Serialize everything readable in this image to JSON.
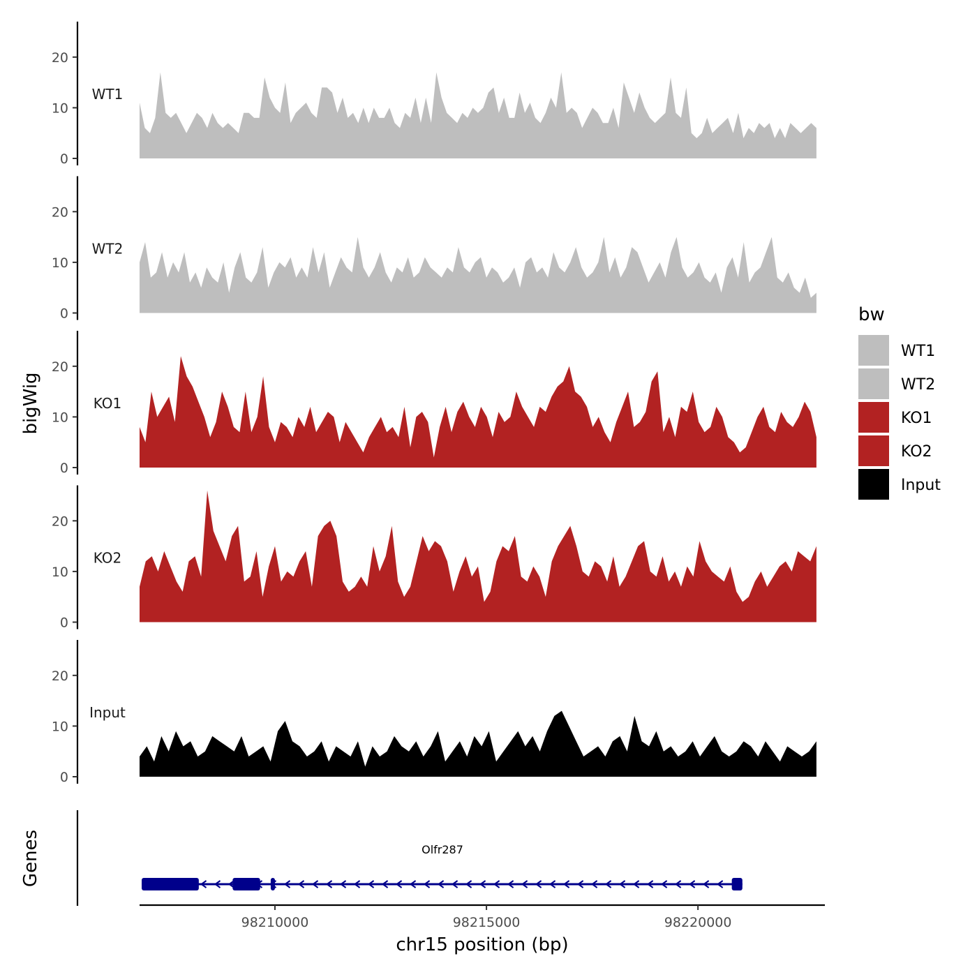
{
  "chart_data": {
    "type": "area",
    "ylabel": "bigWig",
    "xlabel": "chr15 position (bp)",
    "xlim": [
      98206800,
      98223000
    ],
    "x_ticks": [
      98210000,
      98215000,
      98220000
    ],
    "x_tick_labels": [
      "98210000",
      "98215000",
      "98220000"
    ],
    "ylim": [
      0,
      27
    ],
    "y_ticks": [
      0,
      10,
      20
    ],
    "y_tick_labels": [
      "0",
      "10",
      "20"
    ],
    "series": [
      {
        "name": "WT1",
        "color": "#bebebe",
        "start": 98206800,
        "end": 98222800,
        "values": [
          11,
          6,
          5,
          8,
          17,
          9,
          8,
          9,
          7,
          5,
          7,
          9,
          8,
          6,
          9,
          7,
          6,
          7,
          6,
          5,
          9,
          9,
          8,
          8,
          16,
          12,
          10,
          9,
          15,
          7,
          9,
          10,
          11,
          9,
          8,
          14,
          14,
          13,
          9,
          12,
          8,
          9,
          7,
          10,
          7,
          10,
          8,
          8,
          10,
          7,
          6,
          9,
          8,
          12,
          7,
          12,
          7,
          17,
          12,
          9,
          8,
          7,
          9,
          8,
          10,
          9,
          10,
          13,
          14,
          9,
          12,
          8,
          8,
          13,
          9,
          11,
          8,
          7,
          9,
          12,
          10,
          17,
          9,
          10,
          9,
          6,
          8,
          10,
          9,
          7,
          7,
          10,
          6,
          15,
          12,
          9,
          13,
          10,
          8,
          7,
          8,
          9,
          16,
          9,
          8,
          14,
          5,
          4,
          5,
          8,
          5,
          6,
          7,
          8,
          5,
          9,
          4,
          6,
          5,
          7,
          6,
          7,
          4,
          6,
          4,
          7,
          6,
          5,
          6,
          7,
          6
        ]
      },
      {
        "name": "WT2",
        "color": "#bebebe",
        "start": 98206800,
        "end": 98222800,
        "values": [
          10,
          14,
          7,
          8,
          12,
          7,
          10,
          8,
          12,
          6,
          8,
          5,
          9,
          7,
          6,
          10,
          4,
          9,
          12,
          7,
          6,
          8,
          13,
          5,
          8,
          10,
          9,
          11,
          7,
          9,
          7,
          13,
          8,
          12,
          5,
          8,
          11,
          9,
          8,
          15,
          9,
          7,
          9,
          12,
          8,
          6,
          9,
          8,
          11,
          7,
          8,
          11,
          9,
          8,
          7,
          9,
          8,
          13,
          9,
          8,
          10,
          11,
          7,
          9,
          8,
          6,
          7,
          9,
          5,
          10,
          11,
          8,
          9,
          7,
          12,
          9,
          8,
          10,
          13,
          9,
          7,
          8,
          10,
          15,
          8,
          11,
          7,
          9,
          13,
          12,
          9,
          6,
          8,
          10,
          7,
          12,
          15,
          9,
          7,
          8,
          10,
          7,
          6,
          8,
          4,
          9,
          11,
          7,
          14,
          6,
          8,
          9,
          12,
          15,
          7,
          6,
          8,
          5,
          4,
          7,
          3,
          4
        ]
      },
      {
        "name": "KO1",
        "color": "#b22222",
        "start": 98206800,
        "end": 98222800,
        "values": [
          8,
          5,
          15,
          10,
          12,
          14,
          9,
          22,
          18,
          16,
          13,
          10,
          6,
          9,
          15,
          12,
          8,
          7,
          15,
          7,
          10,
          18,
          8,
          5,
          9,
          8,
          6,
          10,
          8,
          12,
          7,
          9,
          11,
          10,
          5,
          9,
          7,
          5,
          3,
          6,
          8,
          10,
          7,
          8,
          6,
          12,
          4,
          10,
          11,
          9,
          2,
          8,
          12,
          7,
          11,
          13,
          10,
          8,
          12,
          10,
          6,
          11,
          9,
          10,
          15,
          12,
          10,
          8,
          12,
          11,
          14,
          16,
          17,
          20,
          15,
          14,
          12,
          8,
          10,
          7,
          5,
          9,
          12,
          15,
          8,
          9,
          11,
          17,
          19,
          7,
          10,
          6,
          12,
          11,
          15,
          9,
          7,
          8,
          12,
          10,
          6,
          5,
          3,
          4,
          7,
          10,
          12,
          8,
          7,
          11,
          9,
          8,
          10,
          13,
          11,
          6
        ]
      },
      {
        "name": "KO2",
        "color": "#b22222",
        "start": 98206800,
        "end": 98222800,
        "values": [
          7,
          12,
          13,
          10,
          14,
          11,
          8,
          6,
          12,
          13,
          9,
          26,
          18,
          15,
          12,
          17,
          19,
          8,
          9,
          14,
          5,
          11,
          15,
          8,
          10,
          9,
          12,
          14,
          7,
          17,
          19,
          20,
          17,
          8,
          6,
          7,
          9,
          7,
          15,
          10,
          13,
          19,
          8,
          5,
          7,
          12,
          17,
          14,
          16,
          15,
          12,
          6,
          10,
          13,
          9,
          11,
          4,
          6,
          12,
          15,
          14,
          17,
          9,
          8,
          11,
          9,
          5,
          12,
          15,
          17,
          19,
          15,
          10,
          9,
          12,
          11,
          8,
          13,
          7,
          9,
          12,
          15,
          16,
          10,
          9,
          13,
          8,
          10,
          7,
          11,
          9,
          16,
          12,
          10,
          9,
          8,
          11,
          6,
          4,
          5,
          8,
          10,
          7,
          9,
          11,
          12,
          10,
          14,
          13,
          12,
          15
        ]
      },
      {
        "name": "Input",
        "color": "#000000",
        "start": 98206800,
        "end": 98222800,
        "values": [
          4,
          6,
          3,
          8,
          5,
          9,
          6,
          7,
          4,
          5,
          8,
          7,
          6,
          5,
          8,
          4,
          5,
          6,
          3,
          9,
          11,
          7,
          6,
          4,
          5,
          7,
          3,
          6,
          5,
          4,
          7,
          2,
          6,
          4,
          5,
          8,
          6,
          5,
          7,
          4,
          6,
          9,
          3,
          5,
          7,
          4,
          8,
          6,
          9,
          3,
          5,
          7,
          9,
          6,
          8,
          5,
          9,
          12,
          13,
          10,
          7,
          4,
          5,
          6,
          4,
          7,
          8,
          5,
          12,
          7,
          6,
          9,
          5,
          6,
          4,
          5,
          7,
          4,
          6,
          8,
          5,
          4,
          5,
          7,
          6,
          4,
          7,
          5,
          3,
          6,
          5,
          4,
          5,
          7
        ]
      }
    ],
    "legend": {
      "title": "bw",
      "placement": "right",
      "entries": [
        {
          "label": "WT1",
          "color": "#bebebe"
        },
        {
          "label": "WT2",
          "color": "#bebebe"
        },
        {
          "label": "KO1",
          "color": "#b22222"
        },
        {
          "label": "KO2",
          "color": "#b22222"
        },
        {
          "label": "Input",
          "color": "#000000"
        }
      ]
    },
    "gene_track": {
      "title": "Genes",
      "color": "#00008b",
      "gene": {
        "name": "Olfr287",
        "start": 98206850,
        "end": 98221050,
        "strand": "-",
        "exons": [
          [
            98206850,
            98208200
          ],
          [
            98209000,
            98209650
          ],
          [
            98209900,
            98210000
          ],
          [
            98220800,
            98221050
          ]
        ]
      }
    }
  }
}
